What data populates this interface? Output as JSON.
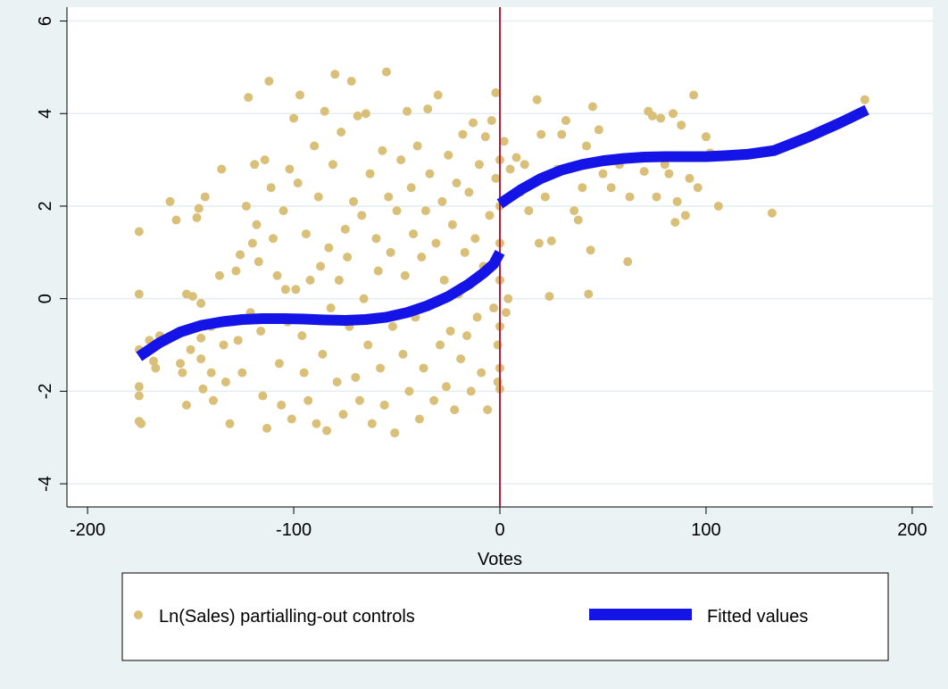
{
  "chart_data": {
    "type": "scatter",
    "title": "",
    "xlabel": "Votes",
    "ylabel": "",
    "xlim": [
      -210,
      210
    ],
    "ylim": [
      -4.5,
      6.3
    ],
    "x_ticks": [
      -200,
      -100,
      0,
      100,
      200
    ],
    "y_ticks": [
      -4,
      -2,
      0,
      2,
      4,
      6
    ],
    "grid": true,
    "vertical_line": {
      "x": 0,
      "color": "#b0213b"
    },
    "legend": {
      "placement": "bottom",
      "entries": [
        "Ln(Sales) partialling-out controls",
        "Fitted values"
      ]
    },
    "colors": {
      "scatter": "#d9bf77",
      "fitted": "#1414e6",
      "plot_background": "#ffffff",
      "page_background": "#eaf2f3",
      "grid": "#e4eef1"
    },
    "series": [
      {
        "name": "Ln(Sales) partialling-out controls",
        "kind": "scatter",
        "points": [
          [
            -175,
            1.45
          ],
          [
            -175,
            0.1
          ],
          [
            -175,
            -1.1
          ],
          [
            -175,
            -1.9
          ],
          [
            -175,
            -2.1
          ],
          [
            -175,
            -2.65
          ],
          [
            -174,
            -2.7
          ],
          [
            -170,
            -0.9
          ],
          [
            -168,
            -1.35
          ],
          [
            -167,
            -1.5
          ],
          [
            -165,
            -0.8
          ],
          [
            -160,
            2.1
          ],
          [
            -157,
            1.7
          ],
          [
            -155,
            -1.4
          ],
          [
            -154,
            -1.6
          ],
          [
            -152,
            0.1
          ],
          [
            -152,
            -2.3
          ],
          [
            -150,
            -1.1
          ],
          [
            -149,
            0.05
          ],
          [
            -147,
            1.75
          ],
          [
            -146,
            1.95
          ],
          [
            -145,
            -0.1
          ],
          [
            -145,
            -0.85
          ],
          [
            -145,
            -1.3
          ],
          [
            -144,
            -1.95
          ],
          [
            -143,
            2.2
          ],
          [
            -140,
            -0.6
          ],
          [
            -140,
            -1.6
          ],
          [
            -139,
            -2.2
          ],
          [
            -136,
            0.5
          ],
          [
            -135,
            2.8
          ],
          [
            -134,
            -1.0
          ],
          [
            -133,
            -1.8
          ],
          [
            -131,
            -2.7
          ],
          [
            -128,
            0.6
          ],
          [
            -127,
            -0.9
          ],
          [
            -126,
            0.95
          ],
          [
            -125,
            -1.6
          ],
          [
            -123,
            2.0
          ],
          [
            -122,
            4.35
          ],
          [
            -121,
            -0.3
          ],
          [
            -120,
            1.2
          ],
          [
            -119,
            2.9
          ],
          [
            -118,
            1.6
          ],
          [
            -117,
            0.8
          ],
          [
            -116,
            -0.7
          ],
          [
            -115,
            -2.1
          ],
          [
            -114,
            3.0
          ],
          [
            -113,
            -2.8
          ],
          [
            -112,
            4.7
          ],
          [
            -111,
            2.4
          ],
          [
            -110,
            1.3
          ],
          [
            -108,
            0.5
          ],
          [
            -107,
            -1.4
          ],
          [
            -106,
            -2.3
          ],
          [
            -105,
            1.9
          ],
          [
            -104,
            0.2
          ],
          [
            -103,
            -0.5
          ],
          [
            -102,
            2.8
          ],
          [
            -101,
            -2.6
          ],
          [
            -100,
            3.9
          ],
          [
            -99,
            0.2
          ],
          [
            -98,
            2.5
          ],
          [
            -97,
            4.4
          ],
          [
            -96,
            -0.8
          ],
          [
            -95,
            -1.6
          ],
          [
            -94,
            1.4
          ],
          [
            -93,
            -2.2
          ],
          [
            -92,
            0.4
          ],
          [
            -90,
            3.3
          ],
          [
            -89,
            -2.7
          ],
          [
            -88,
            2.2
          ],
          [
            -87,
            0.7
          ],
          [
            -86,
            -1.2
          ],
          [
            -85,
            4.05
          ],
          [
            -84,
            -2.85
          ],
          [
            -83,
            1.1
          ],
          [
            -82,
            -0.2
          ],
          [
            -81,
            2.9
          ],
          [
            -80,
            4.85
          ],
          [
            -79,
            -1.8
          ],
          [
            -78,
            0.4
          ],
          [
            -77,
            3.6
          ],
          [
            -76,
            -2.5
          ],
          [
            -75,
            1.5
          ],
          [
            -74,
            0.9
          ],
          [
            -73,
            -0.6
          ],
          [
            -72,
            4.7
          ],
          [
            -71,
            2.1
          ],
          [
            -70,
            -1.7
          ],
          [
            -69,
            3.95
          ],
          [
            -68,
            -2.2
          ],
          [
            -67,
            1.8
          ],
          [
            -66,
            0.0
          ],
          [
            -65,
            4.0
          ],
          [
            -64,
            -1.0
          ],
          [
            -63,
            2.7
          ],
          [
            -62,
            -2.7
          ],
          [
            -60,
            1.3
          ],
          [
            -59,
            0.6
          ],
          [
            -58,
            -1.5
          ],
          [
            -57,
            3.2
          ],
          [
            -56,
            -2.3
          ],
          [
            -55,
            4.9
          ],
          [
            -54,
            2.2
          ],
          [
            -53,
            1.0
          ],
          [
            -52,
            -0.6
          ],
          [
            -51,
            -2.9
          ],
          [
            -50,
            1.9
          ],
          [
            -48,
            3.0
          ],
          [
            -47,
            -1.2
          ],
          [
            -46,
            0.5
          ],
          [
            -45,
            4.05
          ],
          [
            -44,
            -2.0
          ],
          [
            -43,
            2.4
          ],
          [
            -42,
            1.4
          ],
          [
            -41,
            -0.4
          ],
          [
            -40,
            3.3
          ],
          [
            -39,
            -2.6
          ],
          [
            -38,
            0.9
          ],
          [
            -37,
            -1.5
          ],
          [
            -36,
            1.9
          ],
          [
            -35,
            4.1
          ],
          [
            -34,
            2.7
          ],
          [
            -33,
            -0.1
          ],
          [
            -32,
            -2.2
          ],
          [
            -31,
            1.2
          ],
          [
            -30,
            4.4
          ],
          [
            -29,
            -1.0
          ],
          [
            -28,
            2.1
          ],
          [
            -27,
            0.4
          ],
          [
            -26,
            -1.9
          ],
          [
            -25,
            3.1
          ],
          [
            -24,
            -0.7
          ],
          [
            -23,
            1.6
          ],
          [
            -22,
            -2.4
          ],
          [
            -21,
            2.5
          ],
          [
            -20,
            0.1
          ],
          [
            -19,
            -1.3
          ],
          [
            -18,
            3.55
          ],
          [
            -17,
            1.0
          ],
          [
            -16,
            -0.8
          ],
          [
            -15,
            2.3
          ],
          [
            -14,
            -2.0
          ],
          [
            -13,
            3.8
          ],
          [
            -12,
            1.3
          ],
          [
            -11,
            -0.4
          ],
          [
            -10,
            2.9
          ],
          [
            -9,
            -1.6
          ],
          [
            -8,
            0.7
          ],
          [
            -7,
            3.5
          ],
          [
            -6,
            -2.4
          ],
          [
            -5,
            1.8
          ],
          [
            -4,
            3.85
          ],
          [
            -3,
            -0.2
          ],
          [
            -2,
            4.45
          ],
          [
            -2,
            2.6
          ],
          [
            -1,
            -1.0
          ],
          [
            -1,
            -1.8
          ],
          [
            0,
            3.0
          ],
          [
            0,
            2.0
          ],
          [
            0,
            1.2
          ],
          [
            0,
            0.4
          ],
          [
            0,
            -0.6
          ],
          [
            0,
            -1.5
          ],
          [
            0,
            -1.95
          ],
          [
            2,
            3.4
          ],
          [
            3,
            -0.3
          ],
          [
            4,
            0.0
          ],
          [
            5,
            2.8
          ],
          [
            8,
            3.05
          ],
          [
            10,
            2.3
          ],
          [
            12,
            2.9
          ],
          [
            14,
            1.9
          ],
          [
            18,
            4.3
          ],
          [
            19,
            1.2
          ],
          [
            20,
            3.55
          ],
          [
            22,
            2.2
          ],
          [
            24,
            0.05
          ],
          [
            25,
            1.25
          ],
          [
            28,
            2.8
          ],
          [
            30,
            3.55
          ],
          [
            32,
            3.85
          ],
          [
            36,
            1.9
          ],
          [
            38,
            1.7
          ],
          [
            40,
            2.4
          ],
          [
            42,
            3.3
          ],
          [
            43,
            0.1
          ],
          [
            44,
            1.05
          ],
          [
            45,
            4.15
          ],
          [
            48,
            3.65
          ],
          [
            50,
            2.7
          ],
          [
            54,
            2.4
          ],
          [
            58,
            2.9
          ],
          [
            62,
            0.8
          ],
          [
            63,
            2.2
          ],
          [
            70,
            2.75
          ],
          [
            72,
            4.05
          ],
          [
            74,
            3.95
          ],
          [
            76,
            2.2
          ],
          [
            78,
            3.9
          ],
          [
            80,
            2.9
          ],
          [
            82,
            2.7
          ],
          [
            84,
            4.0
          ],
          [
            85,
            1.65
          ],
          [
            86,
            2.1
          ],
          [
            88,
            3.75
          ],
          [
            90,
            1.8
          ],
          [
            92,
            2.6
          ],
          [
            94,
            4.4
          ],
          [
            96,
            2.4
          ],
          [
            98,
            3.05
          ],
          [
            100,
            3.5
          ],
          [
            102,
            3.15
          ],
          [
            106,
            2.0
          ],
          [
            132,
            1.85
          ],
          [
            177,
            4.3
          ]
        ]
      },
      {
        "name": "Fitted values",
        "kind": "line",
        "x": [
          -175,
          -165,
          -155,
          -145,
          -135,
          -125,
          -115,
          -105,
          -95,
          -85,
          -75,
          -65,
          -55,
          -45,
          -35,
          -25,
          -15,
          -8,
          -3,
          0
        ],
        "y": [
          -1.25,
          -0.95,
          -0.72,
          -0.58,
          -0.5,
          -0.45,
          -0.43,
          -0.43,
          -0.44,
          -0.46,
          -0.47,
          -0.45,
          -0.4,
          -0.3,
          -0.15,
          0.05,
          0.32,
          0.55,
          0.75,
          1.0
        ],
        "x2": [
          0,
          10,
          20,
          30,
          40,
          50,
          60,
          70,
          80,
          90,
          100,
          110,
          120,
          133,
          150,
          165,
          178
        ],
        "y2": [
          2.05,
          2.35,
          2.6,
          2.78,
          2.9,
          2.98,
          3.03,
          3.06,
          3.07,
          3.07,
          3.07,
          3.09,
          3.12,
          3.2,
          3.5,
          3.8,
          4.08
        ]
      }
    ]
  }
}
